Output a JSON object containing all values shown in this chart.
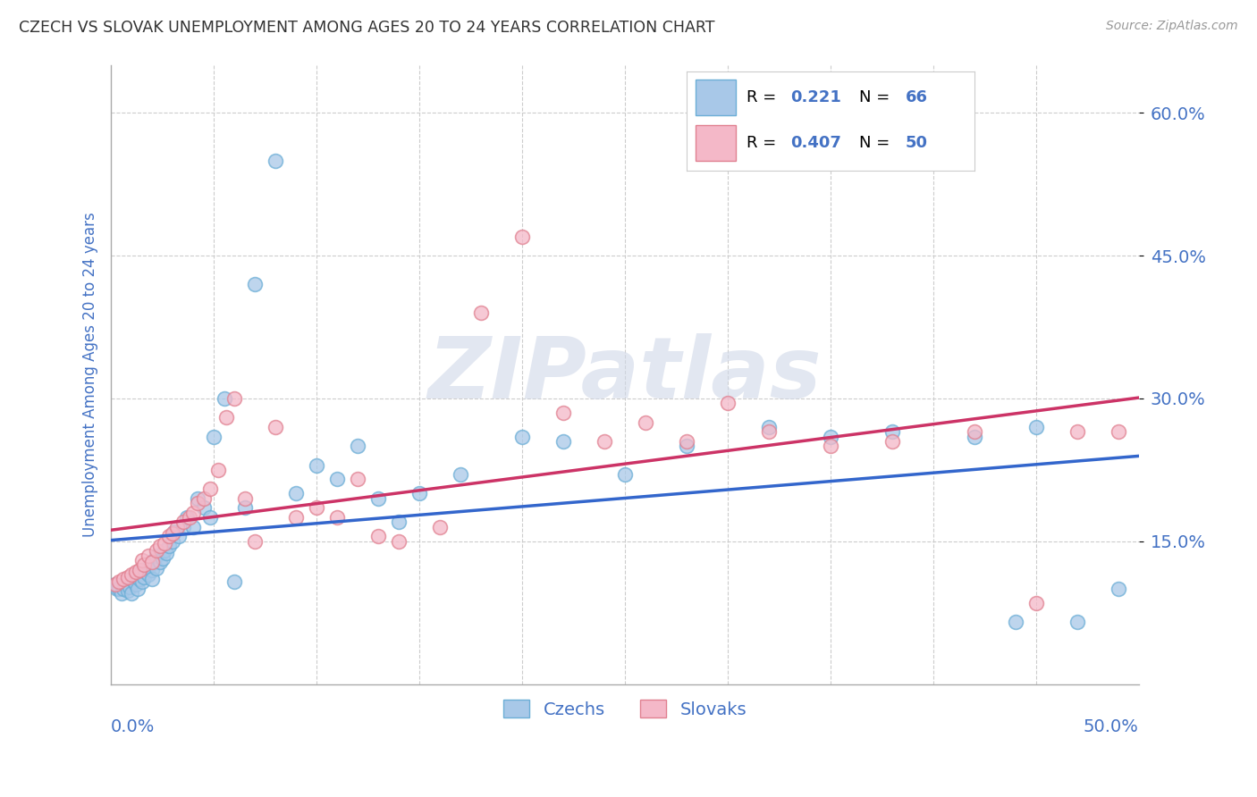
{
  "title": "CZECH VS SLOVAK UNEMPLOYMENT AMONG AGES 20 TO 24 YEARS CORRELATION CHART",
  "source": "Source: ZipAtlas.com",
  "ylabel": "Unemployment Among Ages 20 to 24 years",
  "ytick_labels": [
    "15.0%",
    "30.0%",
    "45.0%",
    "60.0%"
  ],
  "ytick_values": [
    0.15,
    0.3,
    0.45,
    0.6
  ],
  "xlim": [
    0.0,
    0.5
  ],
  "ylim": [
    0.0,
    0.65
  ],
  "czech_color": "#a8c8e8",
  "czech_edge_color": "#6baed6",
  "slovak_color": "#f4b8c8",
  "slovak_edge_color": "#e08090",
  "czech_line_color": "#3366cc",
  "slovak_line_color": "#cc3366",
  "background_color": "#ffffff",
  "grid_color": "#cccccc",
  "title_color": "#333333",
  "axis_label_color": "#4472c4",
  "tick_label_color": "#4472c4",
  "legend_r_color": "#000000",
  "legend_val_color": "#4472c4",
  "watermark_text": "ZIPatlas",
  "czech_scatter_x": [
    0.002,
    0.003,
    0.004,
    0.005,
    0.006,
    0.007,
    0.008,
    0.009,
    0.01,
    0.01,
    0.011,
    0.012,
    0.013,
    0.013,
    0.014,
    0.015,
    0.015,
    0.016,
    0.017,
    0.018,
    0.019,
    0.02,
    0.02,
    0.021,
    0.022,
    0.022,
    0.024,
    0.025,
    0.026,
    0.027,
    0.028,
    0.03,
    0.031,
    0.033,
    0.035,
    0.037,
    0.04,
    0.042,
    0.045,
    0.048,
    0.05,
    0.055,
    0.06,
    0.065,
    0.07,
    0.08,
    0.09,
    0.1,
    0.11,
    0.12,
    0.13,
    0.14,
    0.15,
    0.17,
    0.2,
    0.22,
    0.25,
    0.28,
    0.32,
    0.35,
    0.38,
    0.42,
    0.44,
    0.45,
    0.47,
    0.49
  ],
  "czech_scatter_y": [
    0.105,
    0.1,
    0.1,
    0.095,
    0.1,
    0.105,
    0.098,
    0.102,
    0.11,
    0.095,
    0.108,
    0.105,
    0.1,
    0.115,
    0.11,
    0.108,
    0.12,
    0.112,
    0.118,
    0.115,
    0.125,
    0.12,
    0.11,
    0.13,
    0.122,
    0.135,
    0.128,
    0.132,
    0.14,
    0.138,
    0.145,
    0.15,
    0.16,
    0.155,
    0.165,
    0.175,
    0.165,
    0.195,
    0.185,
    0.175,
    0.26,
    0.3,
    0.108,
    0.185,
    0.42,
    0.55,
    0.2,
    0.23,
    0.215,
    0.25,
    0.195,
    0.17,
    0.2,
    0.22,
    0.26,
    0.255,
    0.22,
    0.25,
    0.27,
    0.26,
    0.265,
    0.26,
    0.065,
    0.27,
    0.065,
    0.1
  ],
  "slovak_scatter_x": [
    0.002,
    0.004,
    0.006,
    0.008,
    0.01,
    0.012,
    0.014,
    0.015,
    0.016,
    0.018,
    0.02,
    0.022,
    0.024,
    0.026,
    0.028,
    0.03,
    0.032,
    0.035,
    0.038,
    0.04,
    0.042,
    0.045,
    0.048,
    0.052,
    0.056,
    0.06,
    0.065,
    0.07,
    0.08,
    0.09,
    0.1,
    0.11,
    0.12,
    0.13,
    0.14,
    0.16,
    0.18,
    0.2,
    0.22,
    0.24,
    0.26,
    0.28,
    0.3,
    0.32,
    0.35,
    0.38,
    0.42,
    0.45,
    0.47,
    0.49
  ],
  "slovak_scatter_y": [
    0.105,
    0.108,
    0.11,
    0.112,
    0.115,
    0.118,
    0.12,
    0.13,
    0.125,
    0.135,
    0.128,
    0.14,
    0.145,
    0.148,
    0.155,
    0.158,
    0.165,
    0.17,
    0.175,
    0.18,
    0.19,
    0.195,
    0.205,
    0.225,
    0.28,
    0.3,
    0.195,
    0.15,
    0.27,
    0.175,
    0.185,
    0.175,
    0.215,
    0.155,
    0.15,
    0.165,
    0.39,
    0.47,
    0.285,
    0.255,
    0.275,
    0.255,
    0.295,
    0.265,
    0.25,
    0.255,
    0.265,
    0.085,
    0.265,
    0.265
  ]
}
